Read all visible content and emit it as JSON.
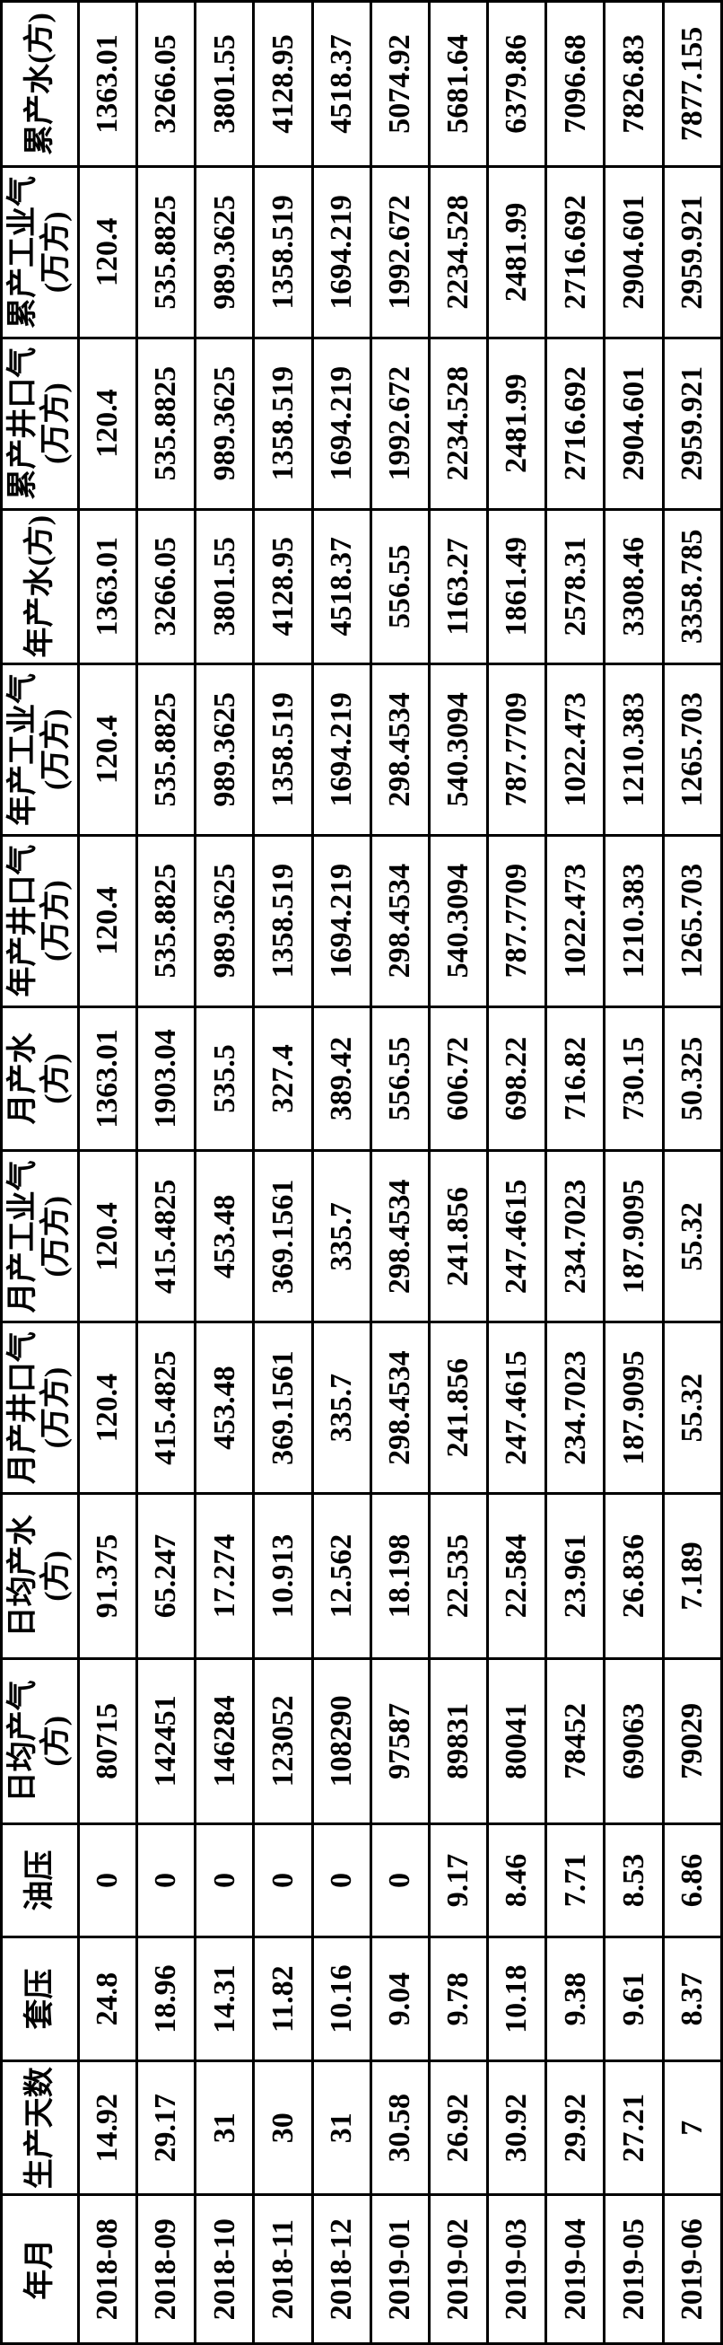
{
  "table": {
    "background_color": "#ffffff",
    "border_color": "#000000",
    "border_width": 3,
    "text_color": "#000000",
    "font_size": 34,
    "font_weight": "bold",
    "rotation_deg": -90,
    "columns": [
      {
        "key": "ym",
        "label": "年月"
      },
      {
        "key": "days",
        "label": "生产天数"
      },
      {
        "key": "cp",
        "label": "套压"
      },
      {
        "key": "op",
        "label": "油压"
      },
      {
        "key": "dg",
        "label": "日均产气(方)"
      },
      {
        "key": "dw",
        "label": "日均产水(方)"
      },
      {
        "key": "mwg",
        "label": "月产井口气(万方)"
      },
      {
        "key": "mig",
        "label": "月产工业气(万方)"
      },
      {
        "key": "mw",
        "label": "月产水(方)"
      },
      {
        "key": "ywg",
        "label": "年产井口气(万方)"
      },
      {
        "key": "yig",
        "label": "年产工业气(万方)"
      },
      {
        "key": "yw",
        "label": "年产水(方)"
      },
      {
        "key": "cwg",
        "label": "累产井口气(万方)"
      },
      {
        "key": "cig",
        "label": "累产工业气(万方)"
      },
      {
        "key": "cw",
        "label": "累产水(方)"
      }
    ],
    "rows": [
      {
        "ym": "2018-08",
        "days": "14.92",
        "cp": "24.8",
        "op": "0",
        "dg": "80715",
        "dw": "91.375",
        "mwg": "120.4",
        "mig": "120.4",
        "mw": "1363.01",
        "ywg": "120.4",
        "yig": "120.4",
        "yw": "1363.01",
        "cwg": "120.4",
        "cig": "120.4",
        "cw": "1363.01"
      },
      {
        "ym": "2018-09",
        "days": "29.17",
        "cp": "18.96",
        "op": "0",
        "dg": "142451",
        "dw": "65.247",
        "mwg": "415.4825",
        "mig": "415.4825",
        "mw": "1903.04",
        "ywg": "535.8825",
        "yig": "535.8825",
        "yw": "3266.05",
        "cwg": "535.8825",
        "cig": "535.8825",
        "cw": "3266.05"
      },
      {
        "ym": "2018-10",
        "days": "31",
        "cp": "14.31",
        "op": "0",
        "dg": "146284",
        "dw": "17.274",
        "mwg": "453.48",
        "mig": "453.48",
        "mw": "535.5",
        "ywg": "989.3625",
        "yig": "989.3625",
        "yw": "3801.55",
        "cwg": "989.3625",
        "cig": "989.3625",
        "cw": "3801.55"
      },
      {
        "ym": "2018-11",
        "days": "30",
        "cp": "11.82",
        "op": "0",
        "dg": "123052",
        "dw": "10.913",
        "mwg": "369.1561",
        "mig": "369.1561",
        "mw": "327.4",
        "ywg": "1358.519",
        "yig": "1358.519",
        "yw": "4128.95",
        "cwg": "1358.519",
        "cig": "1358.519",
        "cw": "4128.95"
      },
      {
        "ym": "2018-12",
        "days": "31",
        "cp": "10.16",
        "op": "0",
        "dg": "108290",
        "dw": "12.562",
        "mwg": "335.7",
        "mig": "335.7",
        "mw": "389.42",
        "ywg": "1694.219",
        "yig": "1694.219",
        "yw": "4518.37",
        "cwg": "1694.219",
        "cig": "1694.219",
        "cw": "4518.37"
      },
      {
        "ym": "2019-01",
        "days": "30.58",
        "cp": "9.04",
        "op": "0",
        "dg": "97587",
        "dw": "18.198",
        "mwg": "298.4534",
        "mig": "298.4534",
        "mw": "556.55",
        "ywg": "298.4534",
        "yig": "298.4534",
        "yw": "556.55",
        "cwg": "1992.672",
        "cig": "1992.672",
        "cw": "5074.92"
      },
      {
        "ym": "2019-02",
        "days": "26.92",
        "cp": "9.78",
        "op": "9.17",
        "dg": "89831",
        "dw": "22.535",
        "mwg": "241.856",
        "mig": "241.856",
        "mw": "606.72",
        "ywg": "540.3094",
        "yig": "540.3094",
        "yw": "1163.27",
        "cwg": "2234.528",
        "cig": "2234.528",
        "cw": "5681.64"
      },
      {
        "ym": "2019-03",
        "days": "30.92",
        "cp": "10.18",
        "op": "8.46",
        "dg": "80041",
        "dw": "22.584",
        "mwg": "247.4615",
        "mig": "247.4615",
        "mw": "698.22",
        "ywg": "787.7709",
        "yig": "787.7709",
        "yw": "1861.49",
        "cwg": "2481.99",
        "cig": "2481.99",
        "cw": "6379.86"
      },
      {
        "ym": "2019-04",
        "days": "29.92",
        "cp": "9.38",
        "op": "7.71",
        "dg": "78452",
        "dw": "23.961",
        "mwg": "234.7023",
        "mig": "234.7023",
        "mw": "716.82",
        "ywg": "1022.473",
        "yig": "1022.473",
        "yw": "2578.31",
        "cwg": "2716.692",
        "cig": "2716.692",
        "cw": "7096.68"
      },
      {
        "ym": "2019-05",
        "days": "27.21",
        "cp": "9.61",
        "op": "8.53",
        "dg": "69063",
        "dw": "26.836",
        "mwg": "187.9095",
        "mig": "187.9095",
        "mw": "730.15",
        "ywg": "1210.383",
        "yig": "1210.383",
        "yw": "3308.46",
        "cwg": "2904.601",
        "cig": "2904.601",
        "cw": "7826.83"
      },
      {
        "ym": "2019-06",
        "days": "7",
        "cp": "8.37",
        "op": "6.86",
        "dg": "79029",
        "dw": "7.189",
        "mwg": "55.32",
        "mig": "55.32",
        "mw": "50.325",
        "ywg": "1265.703",
        "yig": "1265.703",
        "yw": "3358.785",
        "cwg": "2959.921",
        "cig": "2959.921",
        "cw": "7877.155"
      }
    ]
  }
}
